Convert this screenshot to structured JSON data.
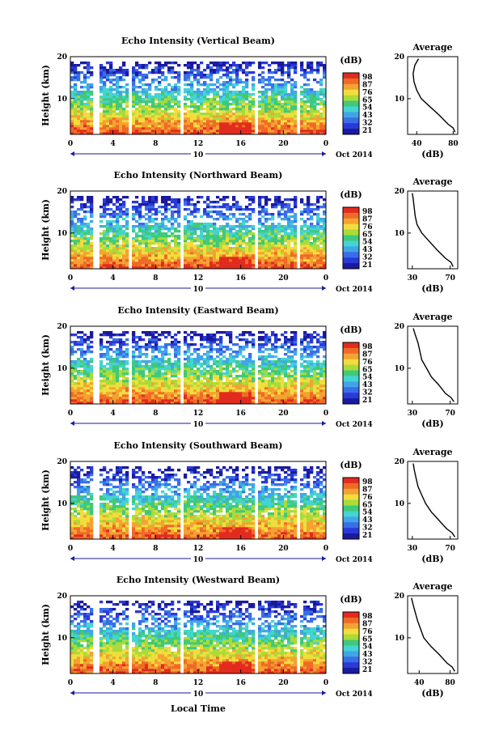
{
  "figure": {
    "ylabel": "Height (km)",
    "xlabel": "Local Time",
    "date_label": "Oct 2014",
    "day_label": "10",
    "avg_title": "Average",
    "cbar_unit": "(dB)",
    "avg_xlabel": "(dB)"
  },
  "colors": {
    "scale": [
      "#1a1a9e",
      "#2a3ad8",
      "#3a6ee8",
      "#41a5e8",
      "#44d4d2",
      "#3fc97a",
      "#a9db3a",
      "#f1dd3d",
      "#f4a232",
      "#f06a26",
      "#e22b1f"
    ]
  },
  "chart_data": [
    {
      "type": "heatmap",
      "title": "Echo Intensity (Vertical Beam)",
      "x_ticks": [
        "0",
        "4",
        "8",
        "12",
        "16",
        "20",
        "0"
      ],
      "y_ticks": [
        "20",
        "10"
      ],
      "xlim": [
        0,
        24
      ],
      "ylim": [
        1.5,
        20
      ],
      "colorbar": {
        "ticks": [
          "98",
          "87",
          "76",
          "65",
          "54",
          "43",
          "32",
          "21"
        ],
        "range": [
          21,
          98
        ]
      },
      "average": {
        "title": "Average",
        "x_ticks": [
          "40",
          "80"
        ],
        "xlim": [
          30,
          85
        ],
        "heights": [
          19.5,
          18,
          16,
          14,
          12,
          10,
          8,
          6,
          4,
          3,
          2
        ],
        "values": [
          42,
          38,
          36,
          37,
          40,
          45,
          55,
          65,
          74,
          80,
          82
        ]
      }
    },
    {
      "type": "heatmap",
      "title": "Echo Intensity (Northward Beam)",
      "x_ticks": [
        "0",
        "4",
        "8",
        "12",
        "16",
        "20",
        "0"
      ],
      "y_ticks": [
        "20",
        "10"
      ],
      "xlim": [
        0,
        24
      ],
      "ylim": [
        1.5,
        20
      ],
      "colorbar": {
        "ticks": [
          "98",
          "87",
          "76",
          "65",
          "54",
          "43",
          "32",
          "21"
        ],
        "range": [
          21,
          98
        ]
      },
      "average": {
        "title": "Average",
        "x_ticks": [
          "30",
          "70"
        ],
        "xlim": [
          25,
          78
        ],
        "heights": [
          19.5,
          18,
          16,
          14,
          12,
          10,
          8,
          6,
          4,
          3,
          2
        ],
        "values": [
          30,
          31,
          32,
          33,
          35,
          40,
          48,
          56,
          65,
          71,
          73
        ]
      }
    },
    {
      "type": "heatmap",
      "title": "Echo Intensity (Eastward Beam)",
      "x_ticks": [
        "0",
        "4",
        "8",
        "12",
        "16",
        "20",
        "0"
      ],
      "y_ticks": [
        "20",
        "10"
      ],
      "xlim": [
        0,
        24
      ],
      "ylim": [
        1.5,
        20
      ],
      "colorbar": {
        "ticks": [
          "98",
          "87",
          "76",
          "65",
          "54",
          "43",
          "32",
          "21"
        ],
        "range": [
          21,
          98
        ]
      },
      "average": {
        "title": "Average",
        "x_ticks": [
          "30",
          "70"
        ],
        "xlim": [
          25,
          78
        ],
        "heights": [
          19.5,
          18,
          16,
          14,
          12,
          10,
          8,
          6,
          4,
          3,
          2
        ],
        "values": [
          31,
          33,
          36,
          38,
          40,
          45,
          50,
          58,
          65,
          71,
          74
        ]
      }
    },
    {
      "type": "heatmap",
      "title": "Echo Intensity (Southward Beam)",
      "x_ticks": [
        "0",
        "4",
        "8",
        "12",
        "16",
        "20",
        "0"
      ],
      "y_ticks": [
        "20",
        "10"
      ],
      "xlim": [
        0,
        24
      ],
      "ylim": [
        1.5,
        20
      ],
      "colorbar": {
        "ticks": [
          "98",
          "87",
          "76",
          "65",
          "54",
          "43",
          "32",
          "21"
        ],
        "range": [
          21,
          98
        ]
      },
      "average": {
        "title": "Average",
        "x_ticks": [
          "30",
          "70"
        ],
        "xlim": [
          25,
          78
        ],
        "heights": [
          19.5,
          18,
          16,
          14,
          12,
          10,
          8,
          6,
          4,
          3,
          2
        ],
        "values": [
          31,
          32,
          34,
          36,
          40,
          44,
          50,
          58,
          66,
          72,
          75
        ]
      }
    },
    {
      "type": "heatmap",
      "title": "Echo Intensity (Westward Beam)",
      "x_ticks": [
        "0",
        "4",
        "8",
        "12",
        "16",
        "20",
        "0"
      ],
      "y_ticks": [
        "20",
        "10"
      ],
      "xlim": [
        0,
        24
      ],
      "ylim": [
        1.5,
        20
      ],
      "colorbar": {
        "ticks": [
          "98",
          "87",
          "76",
          "65",
          "54",
          "43",
          "32",
          "21"
        ],
        "range": [
          21,
          98
        ]
      },
      "average": {
        "title": "Average",
        "x_ticks": [
          "40",
          "80"
        ],
        "xlim": [
          25,
          90
        ],
        "heights": [
          19.5,
          18,
          16,
          14,
          12,
          10,
          8,
          6,
          4,
          3,
          2
        ],
        "values": [
          30,
          32,
          35,
          38,
          42,
          46,
          55,
          66,
          76,
          83,
          86
        ]
      }
    }
  ]
}
